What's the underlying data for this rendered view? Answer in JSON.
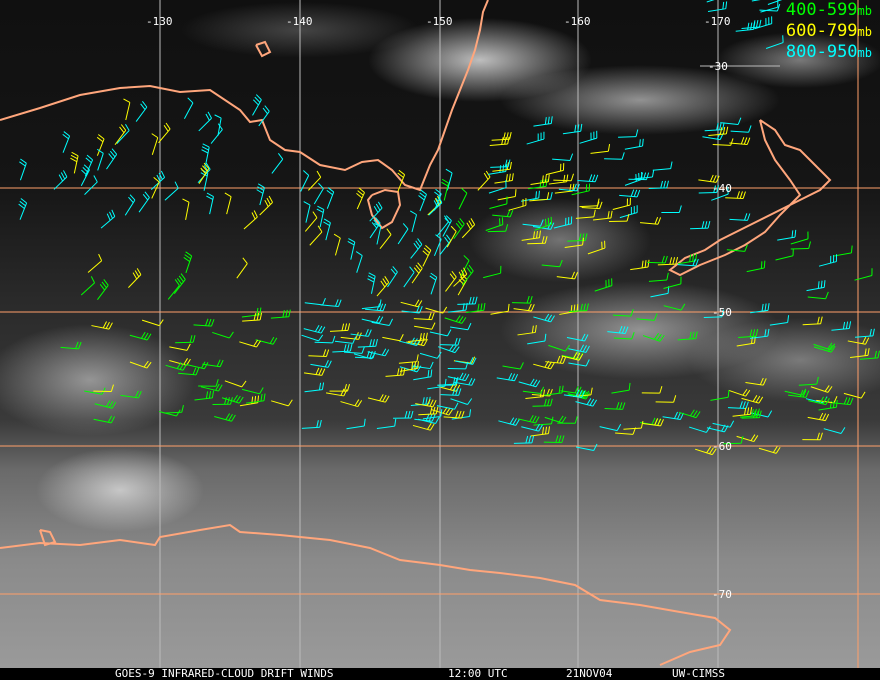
{
  "legend": [
    {
      "range": "400-599",
      "unit": "mb",
      "color": "#00ff00"
    },
    {
      "range": "600-799",
      "unit": "mb",
      "color": "#ffff00"
    },
    {
      "range": "800-950",
      "unit": "mb",
      "color": "#00ffff"
    }
  ],
  "longitude_labels": [
    "-130",
    "-140",
    "-150",
    "-160",
    "-170"
  ],
  "latitude_labels": [
    "-30",
    "-40",
    "-50",
    "-60",
    "-70"
  ],
  "footer": {
    "product": "GOES-9 INFRARED-CLOUD DRIFT WINDS",
    "time": "12:00 UTC",
    "date": "21NOV04",
    "credit": "UW-CIMSS"
  },
  "colors": {
    "grid": "#ff9f6a",
    "coast": "#ffa67c",
    "label": "#ffffff"
  }
}
